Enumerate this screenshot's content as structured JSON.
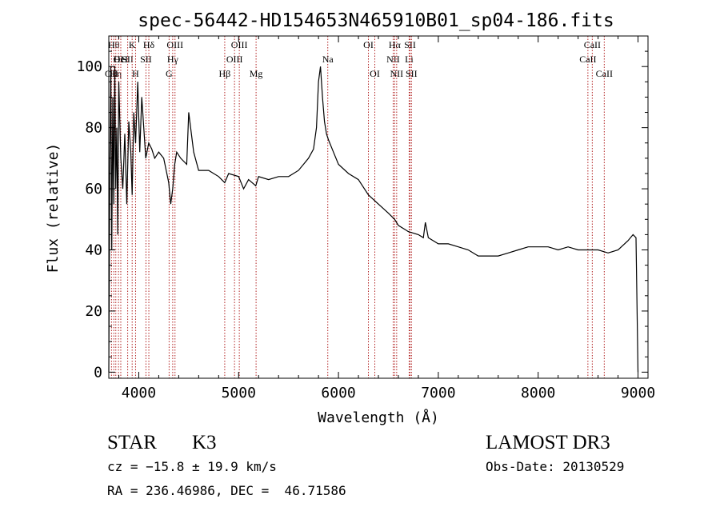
{
  "chart_data": {
    "type": "line",
    "title": "spec-56442-HD154653N465910B01_sp04-186.fits",
    "xlabel": "Wavelength (Å)",
    "ylabel": "Flux (relative)",
    "xlim": [
      3700,
      9100
    ],
    "ylim": [
      -2,
      110
    ],
    "x_ticks": [
      4000,
      5000,
      6000,
      7000,
      8000,
      9000
    ],
    "y_ticks": [
      0,
      20,
      40,
      60,
      80,
      100
    ],
    "grid": false,
    "series": [
      {
        "name": "spectrum",
        "x": [
          3700,
          3710,
          3720,
          3730,
          3740,
          3750,
          3760,
          3770,
          3780,
          3790,
          3800,
          3820,
          3840,
          3860,
          3880,
          3900,
          3920,
          3934,
          3950,
          3968,
          3990,
          4010,
          4030,
          4050,
          4070,
          4100,
          4130,
          4160,
          4200,
          4250,
          4300,
          4320,
          4340,
          4360,
          4380,
          4420,
          4480,
          4500,
          4550,
          4600,
          4700,
          4800,
          4861,
          4900,
          5000,
          5050,
          5100,
          5172,
          5200,
          5300,
          5400,
          5500,
          5600,
          5700,
          5750,
          5780,
          5800,
          5820,
          5840,
          5860,
          5880,
          5900,
          5950,
          6000,
          6100,
          6200,
          6300,
          6400,
          6500,
          6563,
          6600,
          6700,
          6800,
          6850,
          6870,
          6900,
          7000,
          7100,
          7200,
          7300,
          7400,
          7500,
          7600,
          7700,
          7800,
          7900,
          8000,
          8100,
          8200,
          8300,
          8400,
          8500,
          8600,
          8700,
          8800,
          8900,
          8950,
          8980,
          9000
        ],
        "values": [
          0,
          65,
          100,
          40,
          90,
          55,
          100,
          60,
          80,
          45,
          95,
          70,
          60,
          78,
          55,
          82,
          72,
          58,
          85,
          75,
          95,
          72,
          90,
          80,
          70,
          75,
          73,
          70,
          72,
          70,
          62,
          55,
          60,
          68,
          72,
          70,
          68,
          85,
          72,
          66,
          66,
          64,
          62,
          65,
          64,
          60,
          63,
          61,
          64,
          63,
          64,
          64,
          66,
          70,
          73,
          80,
          95,
          100,
          90,
          82,
          78,
          76,
          72,
          68,
          65,
          63,
          58,
          55,
          52,
          50,
          48,
          46,
          45,
          44,
          49,
          44,
          42,
          42,
          41,
          40,
          38,
          38,
          38,
          39,
          40,
          41,
          41,
          41,
          40,
          41,
          40,
          40,
          40,
          39,
          40,
          43,
          45,
          44,
          0
        ]
      }
    ],
    "line_markers": [
      {
        "wl": 3727,
        "label": "OII",
        "row": 2
      },
      {
        "wl": 3750,
        "label": "Hθ",
        "row": 0
      },
      {
        "wl": 3770,
        "label": "Hη",
        "row": 2
      },
      {
        "wl": 3797,
        "label": "OI",
        "row": 1
      },
      {
        "wl": 3820,
        "label": "HeI",
        "row": 1
      },
      {
        "wl": 3889,
        "label": "SII",
        "row": 1
      },
      {
        "wl": 3934,
        "label": "K",
        "row": 0
      },
      {
        "wl": 3968,
        "label": "H",
        "row": 2
      },
      {
        "wl": 4072,
        "label": "SII",
        "row": 1
      },
      {
        "wl": 4101,
        "label": "Hδ",
        "row": 0
      },
      {
        "wl": 4304,
        "label": "G",
        "row": 2
      },
      {
        "wl": 4340,
        "label": "Hγ",
        "row": 1
      },
      {
        "wl": 4363,
        "label": "OIII",
        "row": 0
      },
      {
        "wl": 4861,
        "label": "Hβ",
        "row": 2
      },
      {
        "wl": 4959,
        "label": "OIII",
        "row": 1
      },
      {
        "wl": 5007,
        "label": "OIII",
        "row": 0
      },
      {
        "wl": 5175,
        "label": "Mg",
        "row": 2
      },
      {
        "wl": 5893,
        "label": "Na",
        "row": 1
      },
      {
        "wl": 6300,
        "label": "OI",
        "row": 0
      },
      {
        "wl": 6364,
        "label": "OI",
        "row": 2
      },
      {
        "wl": 6548,
        "label": "NII",
        "row": 1
      },
      {
        "wl": 6563,
        "label": "Hα",
        "row": 0
      },
      {
        "wl": 6583,
        "label": "NII",
        "row": 2
      },
      {
        "wl": 6708,
        "label": "Li",
        "row": 1
      },
      {
        "wl": 6717,
        "label": "SII",
        "row": 0
      },
      {
        "wl": 6731,
        "label": "SII",
        "row": 2
      },
      {
        "wl": 8498,
        "label": "CaII",
        "row": 1
      },
      {
        "wl": 8542,
        "label": "CaII",
        "row": 0
      },
      {
        "wl": 8662,
        "label": "CaII",
        "row": 2
      }
    ]
  },
  "footer": {
    "class_label": "STAR",
    "subclass": "K3",
    "survey": "LAMOST DR3",
    "cz_line": "cz = −15.8 ± 19.9 km/s",
    "obs_date": "Obs-Date: 20130529",
    "coords": "RA = 236.46986, DEC =  46.71586"
  },
  "colors": {
    "marker_line": "#b22222",
    "spectrum": "#000000",
    "axis": "#000000"
  }
}
